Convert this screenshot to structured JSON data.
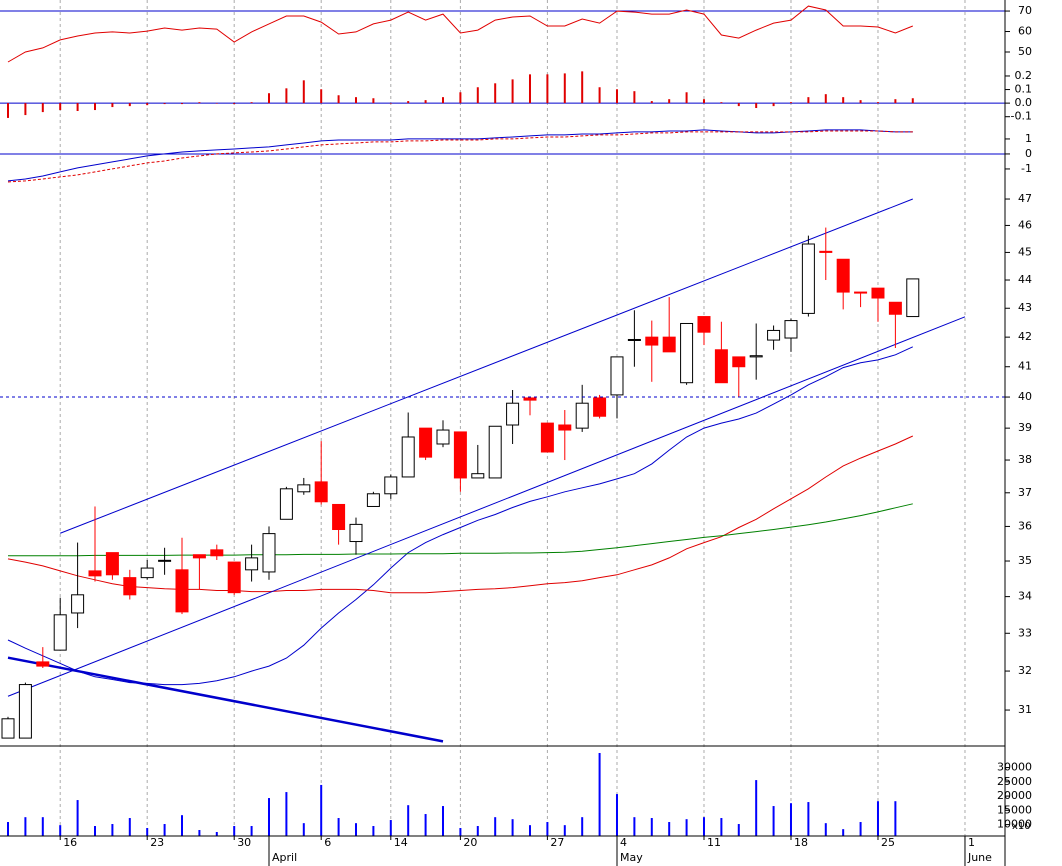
{
  "chart_data": [
    {
      "type": "line",
      "ylim": [
        41.2,
        75.4
      ],
      "yticks": [
        50,
        60,
        70
      ],
      "ref_line": 70,
      "ref_color": "#0000cc",
      "series": [
        {
          "color": "#e00000",
          "values": [
            45.1,
            50,
            52,
            55.9,
            57.8,
            59.3,
            59.8,
            59.3,
            60.2,
            61.7,
            60.7,
            61.7,
            61.2,
            54.9,
            59.8,
            63.7,
            67.6,
            67.6,
            64.6,
            58.8,
            59.8,
            63.7,
            65.6,
            69.5,
            65.6,
            68.5,
            59.3,
            60.7,
            65.6,
            67.1,
            67.6,
            62.7,
            62.7,
            66.1,
            64.1,
            70,
            69.5,
            68.5,
            68.5,
            70.5,
            68.5,
            58.3,
            56.8,
            60.7,
            64.1,
            65.6,
            72.4,
            70.5,
            62.7,
            62.7,
            62.2,
            59.3,
            62.7
          ]
        }
      ]
    },
    {
      "type": "bar",
      "ylim": [
        -0.139,
        0.244
      ],
      "yticks": [
        {
          "value": -0.1,
          "label": "-0.1"
        },
        {
          "value": 0,
          "label": "0.0"
        },
        0.1,
        0.2
      ],
      "ref_line": 0,
      "ref_color": "#0000cc",
      "color": "#e00000",
      "values": [
        -0.109,
        -0.088,
        -0.066,
        -0.051,
        -0.058,
        -0.051,
        -0.029,
        -0.022,
        -0.015,
        -0.007,
        -0.007,
        0.007,
        0,
        -0.007,
        0.007,
        0.073,
        0.109,
        0.168,
        0.102,
        0.058,
        0.044,
        0.036,
        0,
        0.015,
        0.022,
        0.044,
        0.08,
        0.117,
        0.146,
        0.175,
        0.212,
        0.212,
        0.219,
        0.234,
        0.117,
        0.102,
        0.088,
        0.015,
        0.029,
        0.08,
        0.029,
        0.007,
        -0.022,
        -0.036,
        -0.022,
        0.007,
        0.044,
        0.066,
        0.044,
        0.022,
        0.007,
        0.029,
        0.036
      ]
    },
    {
      "type": "line",
      "ylim": [
        -2.07,
        2.13
      ],
      "yticks": [
        -1,
        0,
        1
      ],
      "ref_line": 0,
      "ref_color": "#0000cc",
      "series": [
        {
          "color": "#0000cc",
          "values": [
            -1.8,
            -1.67,
            -1.47,
            -1.2,
            -0.93,
            -0.73,
            -0.53,
            -0.33,
            -0.13,
            0,
            0.13,
            0.2,
            0.27,
            0.33,
            0.4,
            0.47,
            0.6,
            0.73,
            0.87,
            0.93,
            0.93,
            0.93,
            0.93,
            1.0,
            1.0,
            1.0,
            1.0,
            1.0,
            1.07,
            1.13,
            1.2,
            1.27,
            1.27,
            1.33,
            1.33,
            1.4,
            1.47,
            1.47,
            1.53,
            1.53,
            1.6,
            1.53,
            1.47,
            1.4,
            1.4,
            1.47,
            1.53,
            1.6,
            1.6,
            1.6,
            1.53,
            1.47,
            1.47
          ]
        },
        {
          "color": "#e00000",
          "dashed": true,
          "values": [
            -1.87,
            -1.8,
            -1.67,
            -1.53,
            -1.4,
            -1.2,
            -1.0,
            -0.8,
            -0.6,
            -0.47,
            -0.27,
            -0.13,
            0,
            0.07,
            0.13,
            0.2,
            0.33,
            0.47,
            0.6,
            0.67,
            0.73,
            0.8,
            0.8,
            0.87,
            0.87,
            0.93,
            0.93,
            0.93,
            1.0,
            1.0,
            1.07,
            1.13,
            1.13,
            1.2,
            1.27,
            1.27,
            1.33,
            1.4,
            1.4,
            1.47,
            1.47,
            1.47,
            1.47,
            1.47,
            1.47,
            1.47,
            1.47,
            1.53,
            1.53,
            1.53,
            1.53,
            1.47,
            1.47
          ]
        }
      ]
    },
    {
      "type": "candlestick",
      "log_scale": true,
      "ylim": [
        30.13,
        47.54
      ],
      "yticks": [
        31,
        32,
        33,
        34,
        35,
        36,
        37,
        38,
        39,
        40,
        41,
        42,
        43,
        44,
        45,
        46,
        47
      ],
      "ref_line": 40,
      "ref_color": "#0000cc",
      "ref_dashed": true,
      "up_color": "#ffffff",
      "down_color": "#ff0000",
      "open": [
        30.3,
        30.3,
        32.24,
        32.55,
        33.55,
        34.72,
        35.24,
        34.53,
        34.53,
        35.0,
        34.75,
        35.18,
        35.32,
        34.97,
        34.75,
        34.69,
        36.21,
        37.03,
        37.33,
        36.65,
        35.56,
        36.59,
        36.97,
        37.48,
        39.0,
        38.5,
        38.88,
        37.45,
        37.45,
        39.1,
        39.97,
        39.16,
        39.1,
        39.0,
        39.97,
        40.07,
        41.9,
        42.0,
        42.0,
        40.47,
        42.71,
        41.57,
        41.33,
        41.33,
        41.9,
        41.97,
        42.82,
        45.04,
        44.75,
        43.57,
        43.71,
        43.21,
        42.71
      ],
      "high": [
        30.83,
        31.7,
        32.63,
        33.97,
        35.53,
        36.59,
        35.24,
        34.75,
        35.03,
        35.38,
        35.67,
        35.18,
        35.47,
        34.97,
        35.47,
        36.0,
        37.18,
        37.45,
        38.59,
        36.65,
        36.26,
        37.03,
        37.55,
        39.5,
        39.0,
        39.25,
        38.88,
        38.47,
        39.06,
        40.23,
        39.97,
        39.16,
        39.58,
        40.4,
        40.07,
        41.33,
        42.93,
        42.57,
        43.39,
        42.47,
        42.71,
        42.53,
        41.33,
        42.47,
        42.4,
        42.64,
        45.62,
        45.92,
        44.75,
        43.57,
        43.71,
        43.21,
        44.04
      ],
      "low": [
        30.3,
        30.3,
        32.08,
        32.55,
        33.14,
        34.42,
        34.47,
        33.92,
        34.47,
        34.61,
        33.52,
        34.2,
        35.03,
        34.05,
        34.42,
        34.47,
        36.21,
        36.94,
        36.65,
        35.47,
        35.18,
        36.59,
        36.82,
        37.48,
        38.0,
        38.4,
        37.03,
        37.45,
        37.45,
        38.5,
        39.41,
        38.25,
        38.0,
        38.88,
        39.31,
        39.31,
        41.0,
        40.5,
        41.5,
        40.4,
        41.73,
        40.47,
        40.0,
        40.57,
        41.57,
        41.5,
        42.71,
        44.0,
        42.96,
        43.04,
        42.53,
        41.63,
        42.71
      ],
      "close": [
        30.78,
        31.65,
        32.13,
        33.5,
        34.05,
        34.58,
        34.61,
        34.05,
        34.8,
        35.02,
        33.58,
        35.09,
        35.15,
        34.11,
        35.09,
        35.79,
        37.12,
        37.24,
        36.73,
        35.91,
        36.06,
        36.97,
        37.48,
        38.72,
        38.09,
        38.94,
        37.45,
        37.58,
        39.06,
        39.8,
        39.9,
        38.25,
        38.94,
        39.8,
        39.38,
        41.33,
        41.92,
        41.73,
        41.5,
        42.47,
        42.17,
        40.47,
        41.0,
        41.37,
        42.23,
        42.57,
        45.31,
        45.0,
        43.57,
        43.54,
        43.36,
        42.79,
        44.04
      ],
      "series": [
        {
          "color": "#0000cc",
          "values": [
            32.82,
            32.6,
            32.4,
            32.2,
            32.0,
            31.85,
            31.78,
            31.7,
            31.68,
            31.65,
            31.65,
            31.68,
            31.75,
            31.85,
            32.0,
            32.13,
            32.34,
            32.68,
            33.14,
            33.55,
            33.92,
            34.33,
            34.8,
            35.24,
            35.53,
            35.76,
            35.97,
            36.18,
            36.35,
            36.56,
            36.74,
            36.88,
            37.03,
            37.15,
            37.27,
            37.42,
            37.58,
            37.88,
            38.31,
            38.72,
            39.0,
            39.16,
            39.29,
            39.48,
            39.77,
            40.07,
            40.4,
            40.67,
            40.97,
            41.13,
            41.23,
            41.4,
            41.67
          ]
        },
        {
          "color": "#e00000",
          "values": [
            35.06,
            34.97,
            34.86,
            34.72,
            34.58,
            34.47,
            34.36,
            34.28,
            34.25,
            34.22,
            34.2,
            34.2,
            34.17,
            34.17,
            34.14,
            34.14,
            34.17,
            34.17,
            34.2,
            34.2,
            34.2,
            34.17,
            34.11,
            34.11,
            34.11,
            34.14,
            34.17,
            34.2,
            34.22,
            34.25,
            34.3,
            34.36,
            34.39,
            34.44,
            34.53,
            34.61,
            34.75,
            34.89,
            35.09,
            35.35,
            35.53,
            35.7,
            35.97,
            36.21,
            36.52,
            36.82,
            37.12,
            37.48,
            37.82,
            38.06,
            38.28,
            38.5,
            38.75
          ]
        },
        {
          "color": "#008000",
          "values": [
            35.15,
            35.15,
            35.15,
            35.15,
            35.15,
            35.16,
            35.16,
            35.16,
            35.16,
            35.16,
            35.17,
            35.17,
            35.17,
            35.17,
            35.18,
            35.18,
            35.18,
            35.19,
            35.19,
            35.19,
            35.2,
            35.2,
            35.2,
            35.21,
            35.21,
            35.21,
            35.22,
            35.22,
            35.22,
            35.23,
            35.23,
            35.24,
            35.25,
            35.28,
            35.33,
            35.38,
            35.44,
            35.5,
            35.56,
            35.62,
            35.68,
            35.73,
            35.79,
            35.85,
            35.91,
            35.98,
            36.05,
            36.13,
            36.22,
            36.32,
            36.43,
            36.55,
            36.67
          ]
        }
      ],
      "trend_lines": [
        {
          "x": [
            3,
            52
          ],
          "values": [
            35.8,
            47.0
          ],
          "color": "#0000cc",
          "width": 1
        },
        {
          "x": [
            0,
            55
          ],
          "values": [
            31.35,
            42.7
          ],
          "color": "#0000cc",
          "width": 1
        },
        {
          "x": [
            0,
            25
          ],
          "values": [
            32.35,
            30.22
          ],
          "color": "#0000cc",
          "width": 2.5
        }
      ]
    },
    {
      "type": "bar",
      "ylim": [
        6000,
        37200
      ],
      "yticks": [
        10000,
        15000,
        20000,
        25000,
        30000
      ],
      "unit_label": "x10",
      "color": "#0000ff",
      "values": [
        10900,
        12600,
        12600,
        9800,
        18600,
        9500,
        10200,
        12300,
        8800,
        10200,
        13300,
        8100,
        7400,
        9500,
        9500,
        19300,
        21400,
        10500,
        23900,
        12300,
        10500,
        9500,
        11600,
        16800,
        13700,
        16500,
        8800,
        9500,
        12600,
        11900,
        9800,
        10900,
        9800,
        12600,
        35100,
        20700,
        12600,
        12300,
        10900,
        11900,
        12600,
        12300,
        10200,
        25600,
        16500,
        17500,
        17900,
        10500,
        8400,
        10900,
        18200,
        18200,
        null
      ],
      "xlim": [
        -0.46,
        57.3
      ],
      "xticks": [
        {
          "value": 3,
          "label": "16"
        },
        {
          "value": 8,
          "label": "23"
        },
        {
          "value": 13,
          "label": "30"
        },
        {
          "value": 18,
          "label": "6"
        },
        {
          "value": 22,
          "label": "14"
        },
        {
          "value": 26,
          "label": "20"
        },
        {
          "value": 31,
          "label": "27"
        },
        {
          "value": 35,
          "label": "4"
        },
        {
          "value": 40,
          "label": "11"
        },
        {
          "value": 45,
          "label": "18"
        },
        {
          "value": 50,
          "label": "25"
        },
        {
          "value": 55,
          "label": "1"
        }
      ],
      "month_ticks": [
        {
          "value": 15,
          "label": "April"
        },
        {
          "value": 35,
          "label": "May"
        },
        {
          "value": 55,
          "label": "June"
        }
      ]
    }
  ]
}
